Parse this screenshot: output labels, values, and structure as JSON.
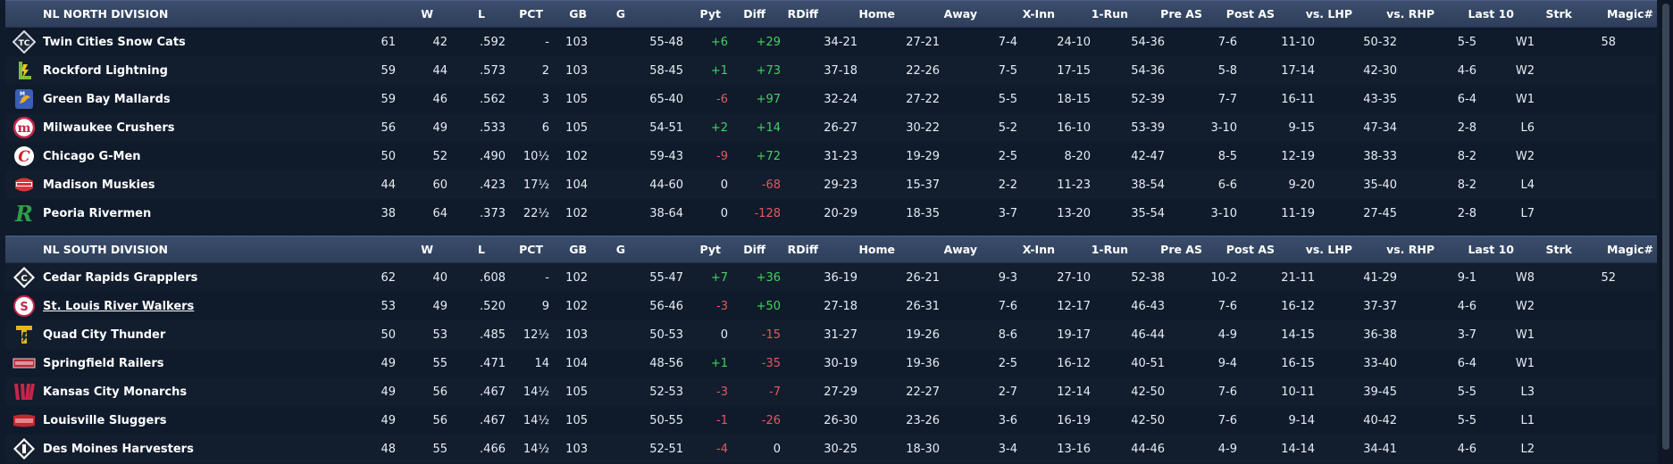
{
  "columns": [
    "W",
    "L",
    "PCT",
    "GB",
    "G",
    "Pyt",
    "Diff",
    "RDiff",
    "Home",
    "Away",
    "X-Inn",
    "1-Run",
    "Pre AS",
    "Post AS",
    "vs. LHP",
    "vs. RHP",
    "Last 10",
    "Strk",
    "Magic#"
  ],
  "divisions": [
    {
      "name": "NL NORTH DIVISION",
      "teams": [
        {
          "name": "Twin Cities Snow Cats",
          "logo": "snow-cats-logo",
          "logo_color": "#d8dde6",
          "w": "61",
          "l": "42",
          "pct": ".592",
          "gb": "-",
          "g": "103",
          "pyt": "55-48",
          "diff": "+6",
          "diff_sign": "pos",
          "rdiff": "+29",
          "rdiff_sign": "pos",
          "home": "34-21",
          "away": "27-21",
          "xinn": "7-4",
          "onerun": "24-10",
          "preas": "54-36",
          "postas": "7-6",
          "lhp": "11-10",
          "rhp": "50-32",
          "last10": "5-5",
          "strk": "W1",
          "magic": "58",
          "link": false
        },
        {
          "name": "Rockford Lightning",
          "logo": "lightning-logo",
          "logo_color": "#7bbf3a",
          "w": "59",
          "l": "44",
          "pct": ".573",
          "gb": "2",
          "g": "103",
          "pyt": "58-45",
          "diff": "+1",
          "diff_sign": "pos",
          "rdiff": "+73",
          "rdiff_sign": "pos",
          "home": "37-18",
          "away": "22-26",
          "xinn": "7-5",
          "onerun": "17-15",
          "preas": "54-36",
          "postas": "5-8",
          "lhp": "17-14",
          "rhp": "42-30",
          "last10": "4-6",
          "strk": "W2",
          "magic": "",
          "link": false
        },
        {
          "name": "Green Bay  Mallards",
          "logo": "mallards-logo",
          "logo_color": "#3a5fb8",
          "w": "59",
          "l": "46",
          "pct": ".562",
          "gb": "3",
          "g": "105",
          "pyt": "65-40",
          "diff": "-6",
          "diff_sign": "neg",
          "rdiff": "+97",
          "rdiff_sign": "pos",
          "home": "32-24",
          "away": "27-22",
          "xinn": "5-5",
          "onerun": "18-15",
          "preas": "52-39",
          "postas": "7-7",
          "lhp": "16-11",
          "rhp": "43-35",
          "last10": "6-4",
          "strk": "W1",
          "magic": "",
          "link": false
        },
        {
          "name": "Milwaukee Crushers",
          "logo": "crushers-logo",
          "logo_color": "#c6264a",
          "w": "56",
          "l": "49",
          "pct": ".533",
          "gb": "6",
          "g": "105",
          "pyt": "54-51",
          "diff": "+2",
          "diff_sign": "pos",
          "rdiff": "+14",
          "rdiff_sign": "pos",
          "home": "26-27",
          "away": "30-22",
          "xinn": "5-2",
          "onerun": "16-10",
          "preas": "53-39",
          "postas": "3-10",
          "lhp": "9-15",
          "rhp": "47-34",
          "last10": "2-8",
          "strk": "L6",
          "magic": "",
          "link": false
        },
        {
          "name": "Chicago G-Men",
          "logo": "g-men-logo",
          "logo_color": "#c62630",
          "w": "50",
          "l": "52",
          "pct": ".490",
          "gb": "10½",
          "g": "102",
          "pyt": "59-43",
          "diff": "-9",
          "diff_sign": "neg",
          "rdiff": "+72",
          "rdiff_sign": "pos",
          "home": "31-23",
          "away": "19-29",
          "xinn": "2-5",
          "onerun": "8-20",
          "preas": "42-47",
          "postas": "8-5",
          "lhp": "12-19",
          "rhp": "38-33",
          "last10": "8-2",
          "strk": "W2",
          "magic": "",
          "link": false
        },
        {
          "name": "Madison Muskies",
          "logo": "muskies-logo",
          "logo_color": "#d8343a",
          "w": "44",
          "l": "60",
          "pct": ".423",
          "gb": "17½",
          "g": "104",
          "pyt": "44-60",
          "diff": "0",
          "diff_sign": "none",
          "rdiff": "-68",
          "rdiff_sign": "neg",
          "home": "29-23",
          "away": "15-37",
          "xinn": "2-2",
          "onerun": "11-23",
          "preas": "38-54",
          "postas": "6-6",
          "lhp": "9-20",
          "rhp": "35-40",
          "last10": "8-2",
          "strk": "L4",
          "magic": "",
          "link": false
        },
        {
          "name": "Peoria Rivermen",
          "logo": "rivermen-logo",
          "logo_color": "#2f9e48",
          "w": "38",
          "l": "64",
          "pct": ".373",
          "gb": "22½",
          "g": "102",
          "pyt": "38-64",
          "diff": "0",
          "diff_sign": "none",
          "rdiff": "-128",
          "rdiff_sign": "neg",
          "home": "20-29",
          "away": "18-35",
          "xinn": "3-7",
          "onerun": "13-20",
          "preas": "35-54",
          "postas": "3-10",
          "lhp": "11-19",
          "rhp": "27-45",
          "last10": "2-8",
          "strk": "L7",
          "magic": "",
          "link": false
        }
      ]
    },
    {
      "name": "NL SOUTH DIVISION",
      "teams": [
        {
          "name": "Cedar Rapids Grapplers",
          "logo": "grapplers-logo",
          "logo_color": "#222a36",
          "w": "62",
          "l": "40",
          "pct": ".608",
          "gb": "-",
          "g": "102",
          "pyt": "55-47",
          "diff": "+7",
          "diff_sign": "pos",
          "rdiff": "+36",
          "rdiff_sign": "pos",
          "home": "36-19",
          "away": "26-21",
          "xinn": "9-3",
          "onerun": "27-10",
          "preas": "52-38",
          "postas": "10-2",
          "lhp": "21-11",
          "rhp": "41-29",
          "last10": "9-1",
          "strk": "W8",
          "magic": "52",
          "link": false
        },
        {
          "name": "St. Louis River Walkers",
          "logo": "river-walkers-logo",
          "logo_color": "#c6264a",
          "w": "53",
          "l": "49",
          "pct": ".520",
          "gb": "9",
          "g": "102",
          "pyt": "56-46",
          "diff": "-3",
          "diff_sign": "neg",
          "rdiff": "+50",
          "rdiff_sign": "pos",
          "home": "27-18",
          "away": "26-31",
          "xinn": "7-6",
          "onerun": "12-17",
          "preas": "46-43",
          "postas": "7-6",
          "lhp": "16-12",
          "rhp": "37-37",
          "last10": "4-6",
          "strk": "W2",
          "magic": "",
          "link": true
        },
        {
          "name": "Quad City Thunder",
          "logo": "thunder-logo",
          "logo_color": "#e2b620",
          "w": "50",
          "l": "53",
          "pct": ".485",
          "gb": "12½",
          "g": "103",
          "pyt": "50-53",
          "diff": "0",
          "diff_sign": "none",
          "rdiff": "-15",
          "rdiff_sign": "neg",
          "home": "31-27",
          "away": "19-26",
          "xinn": "8-6",
          "onerun": "19-17",
          "preas": "46-44",
          "postas": "4-9",
          "lhp": "14-15",
          "rhp": "36-38",
          "last10": "3-7",
          "strk": "W1",
          "magic": "",
          "link": false
        },
        {
          "name": "Springfield Railers",
          "logo": "railers-logo",
          "logo_color": "#b82a36",
          "w": "49",
          "l": "55",
          "pct": ".471",
          "gb": "14",
          "g": "104",
          "pyt": "48-56",
          "diff": "+1",
          "diff_sign": "pos",
          "rdiff": "-35",
          "rdiff_sign": "neg",
          "home": "30-19",
          "away": "19-36",
          "xinn": "2-5",
          "onerun": "16-12",
          "preas": "40-51",
          "postas": "9-4",
          "lhp": "16-15",
          "rhp": "33-40",
          "last10": "6-4",
          "strk": "W1",
          "magic": "",
          "link": false
        },
        {
          "name": "Kansas City Monarchs",
          "logo": "monarchs-logo",
          "logo_color": "#c6264a",
          "w": "49",
          "l": "56",
          "pct": ".467",
          "gb": "14½",
          "g": "105",
          "pyt": "52-53",
          "diff": "-3",
          "diff_sign": "neg",
          "rdiff": "-7",
          "rdiff_sign": "neg",
          "home": "27-29",
          "away": "22-27",
          "xinn": "2-7",
          "onerun": "12-14",
          "preas": "42-50",
          "postas": "7-6",
          "lhp": "10-11",
          "rhp": "39-45",
          "last10": "5-5",
          "strk": "L3",
          "magic": "",
          "link": false
        },
        {
          "name": "Louisville Sluggers",
          "logo": "sluggers-logo",
          "logo_color": "#c62630",
          "w": "49",
          "l": "56",
          "pct": ".467",
          "gb": "14½",
          "g": "105",
          "pyt": "50-55",
          "diff": "-1",
          "diff_sign": "neg",
          "rdiff": "-26",
          "rdiff_sign": "neg",
          "home": "26-30",
          "away": "23-26",
          "xinn": "3-6",
          "onerun": "16-19",
          "preas": "42-50",
          "postas": "7-6",
          "lhp": "9-14",
          "rhp": "40-42",
          "last10": "5-5",
          "strk": "L1",
          "magic": "",
          "link": false
        },
        {
          "name": "Des Moines Harvesters",
          "logo": "harvesters-logo",
          "logo_color": "#222a36",
          "w": "48",
          "l": "55",
          "pct": ".466",
          "gb": "14½",
          "g": "103",
          "pyt": "52-51",
          "diff": "-4",
          "diff_sign": "neg",
          "rdiff": "0",
          "rdiff_sign": "none",
          "home": "30-25",
          "away": "18-30",
          "xinn": "3-4",
          "onerun": "13-16",
          "preas": "44-46",
          "postas": "4-9",
          "lhp": "14-14",
          "rhp": "34-41",
          "last10": "4-6",
          "strk": "L2",
          "magic": "",
          "link": false
        }
      ]
    }
  ]
}
